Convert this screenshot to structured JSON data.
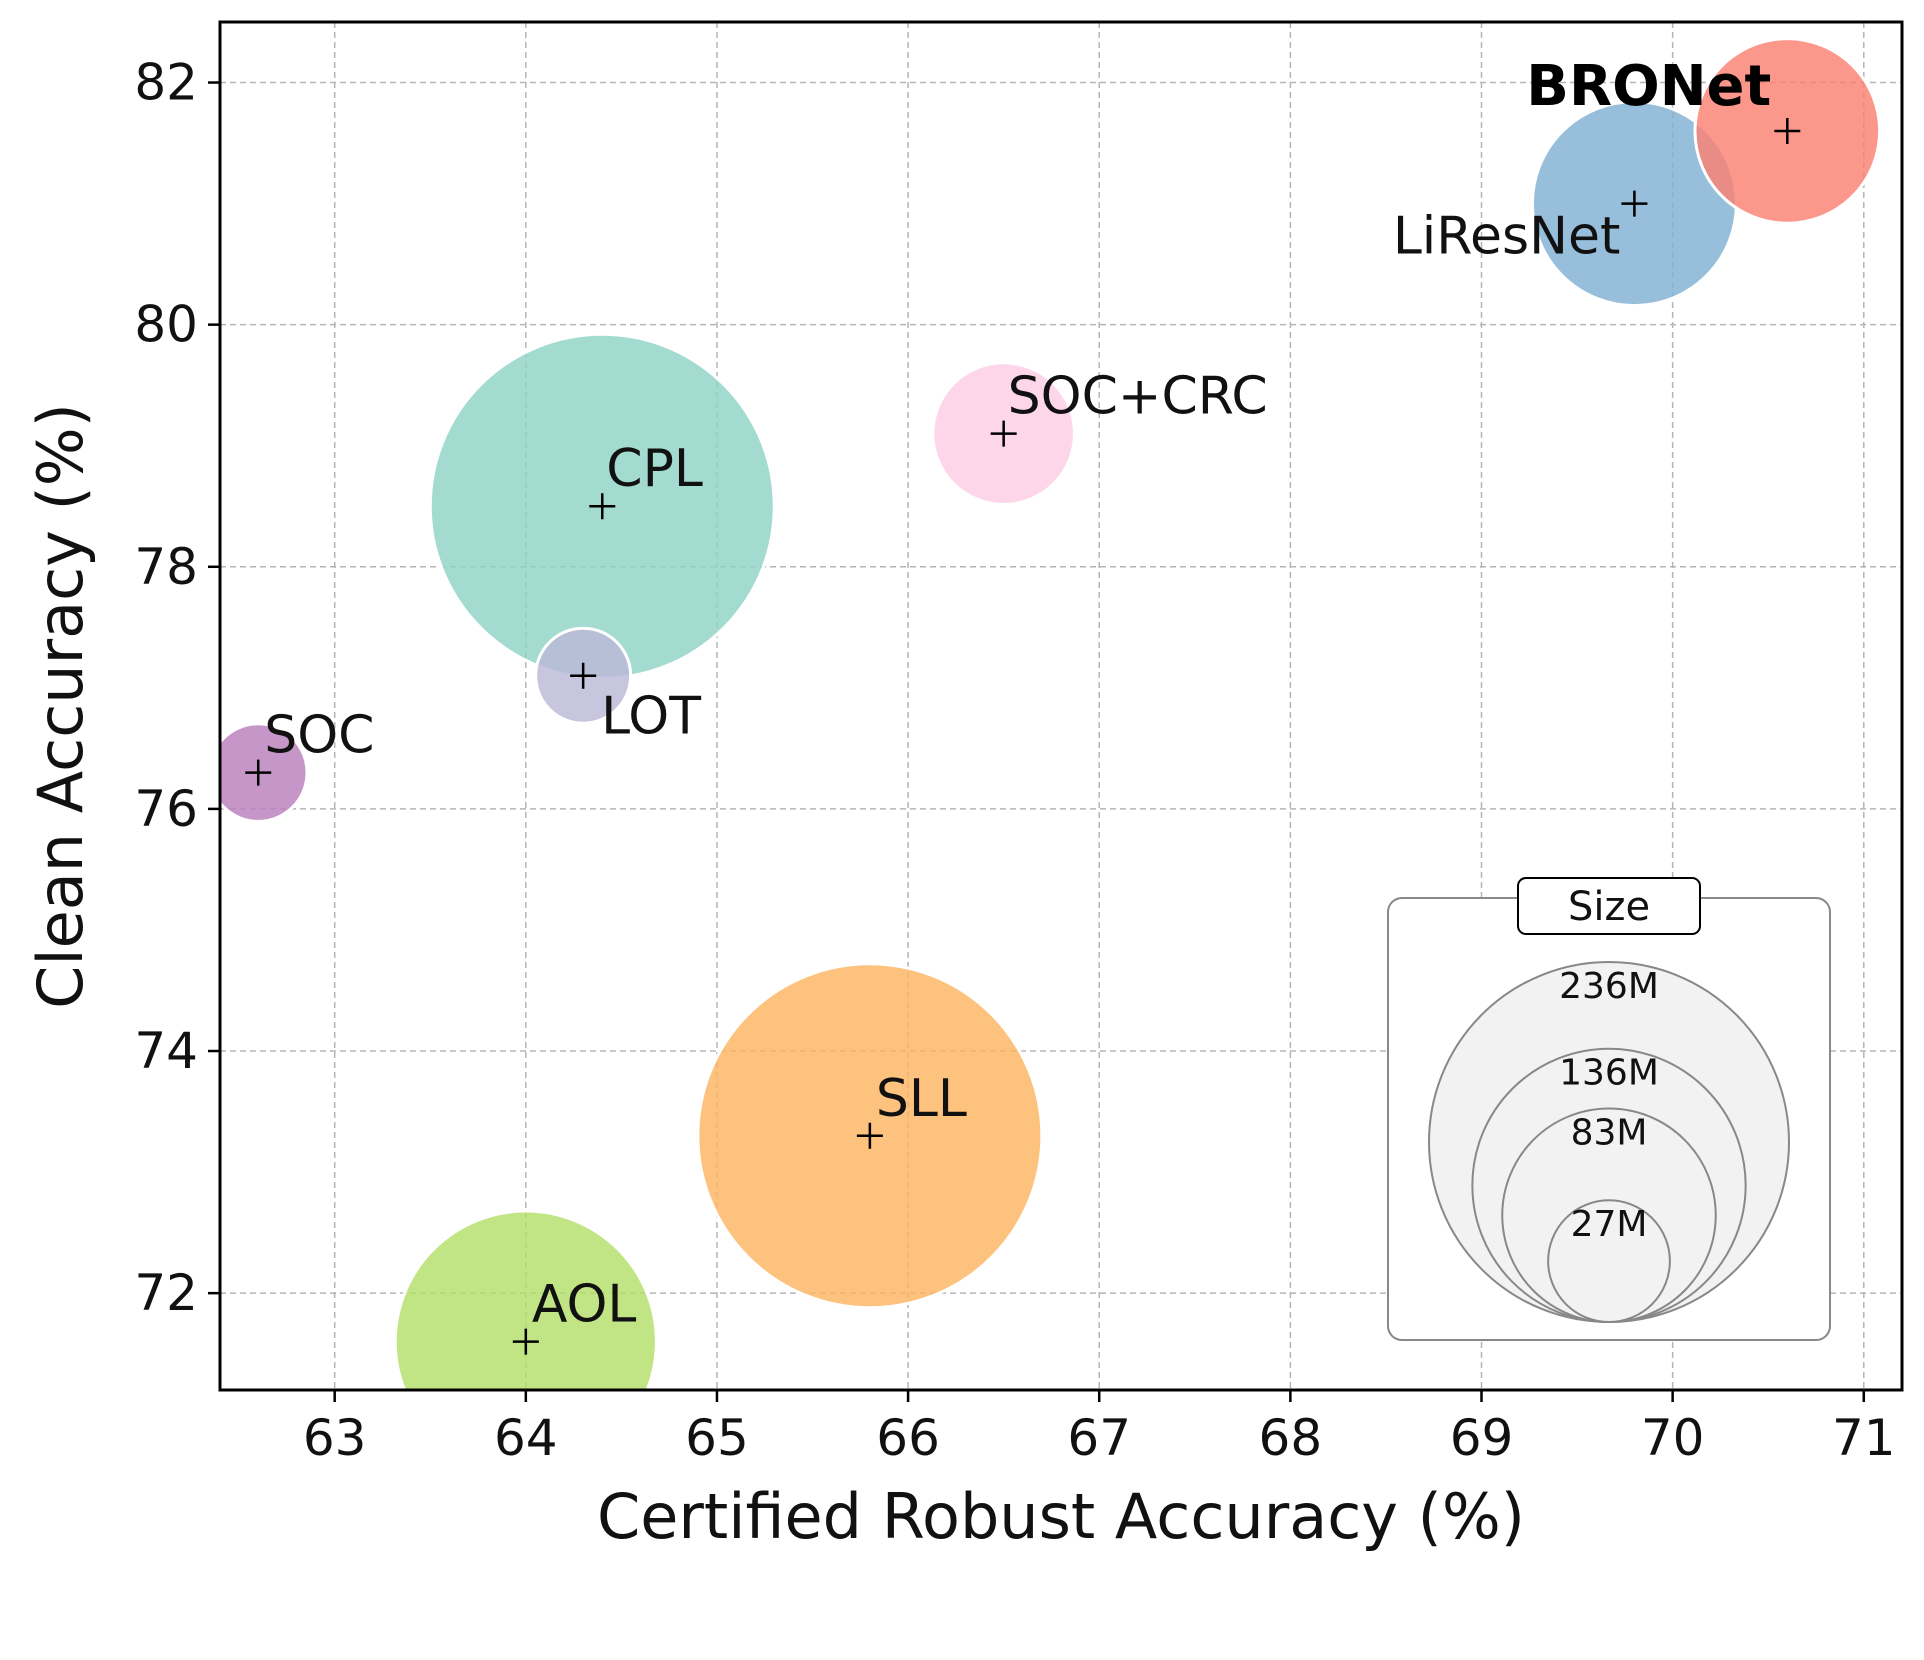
{
  "chart_data": {
    "type": "scatter",
    "xlabel": "Certified Robust Accuracy (%)",
    "ylabel": "Clean Accuracy (%)",
    "xlim": [
      62.4,
      71.2
    ],
    "ylim": [
      71.2,
      82.5
    ],
    "x_ticks": [
      63,
      64,
      65,
      66,
      67,
      68,
      69,
      70,
      71
    ],
    "y_ticks": [
      72,
      74,
      76,
      78,
      80,
      82
    ],
    "grid": true,
    "points": [
      {
        "name": "CPL",
        "x": 64.4,
        "y": 78.5,
        "size_m": 236,
        "color": "#8fd3c7"
      },
      {
        "name": "SOC+CRC",
        "x": 66.5,
        "y": 79.1,
        "size_m": 40,
        "color": "#fccde5"
      },
      {
        "name": "LOT",
        "x": 64.3,
        "y": 77.1,
        "size_m": 18,
        "color": "#bcb8d8"
      },
      {
        "name": "SOC",
        "x": 62.6,
        "y": 76.3,
        "size_m": 19,
        "color": "#bb7fbd"
      },
      {
        "name": "SLL",
        "x": 65.8,
        "y": 73.3,
        "size_m": 236,
        "color": "#fdb462"
      },
      {
        "name": "AOL",
        "x": 64.0,
        "y": 71.6,
        "size_m": 136,
        "color": "#b3de69"
      },
      {
        "name": "LiResNet",
        "x": 69.8,
        "y": 81.0,
        "size_m": 83,
        "color": "#80b1d3"
      },
      {
        "name": "BRONet",
        "x": 70.6,
        "y": 81.6,
        "size_m": 68,
        "color": "#fb8072",
        "bold": true
      }
    ],
    "legend": {
      "title": "Size",
      "placement": "lower-right",
      "entries": [
        {
          "label": "236M",
          "value": 236
        },
        {
          "label": "136M",
          "value": 136
        },
        {
          "label": "83M",
          "value": 83
        },
        {
          "label": "27M",
          "value": 27
        }
      ]
    }
  }
}
